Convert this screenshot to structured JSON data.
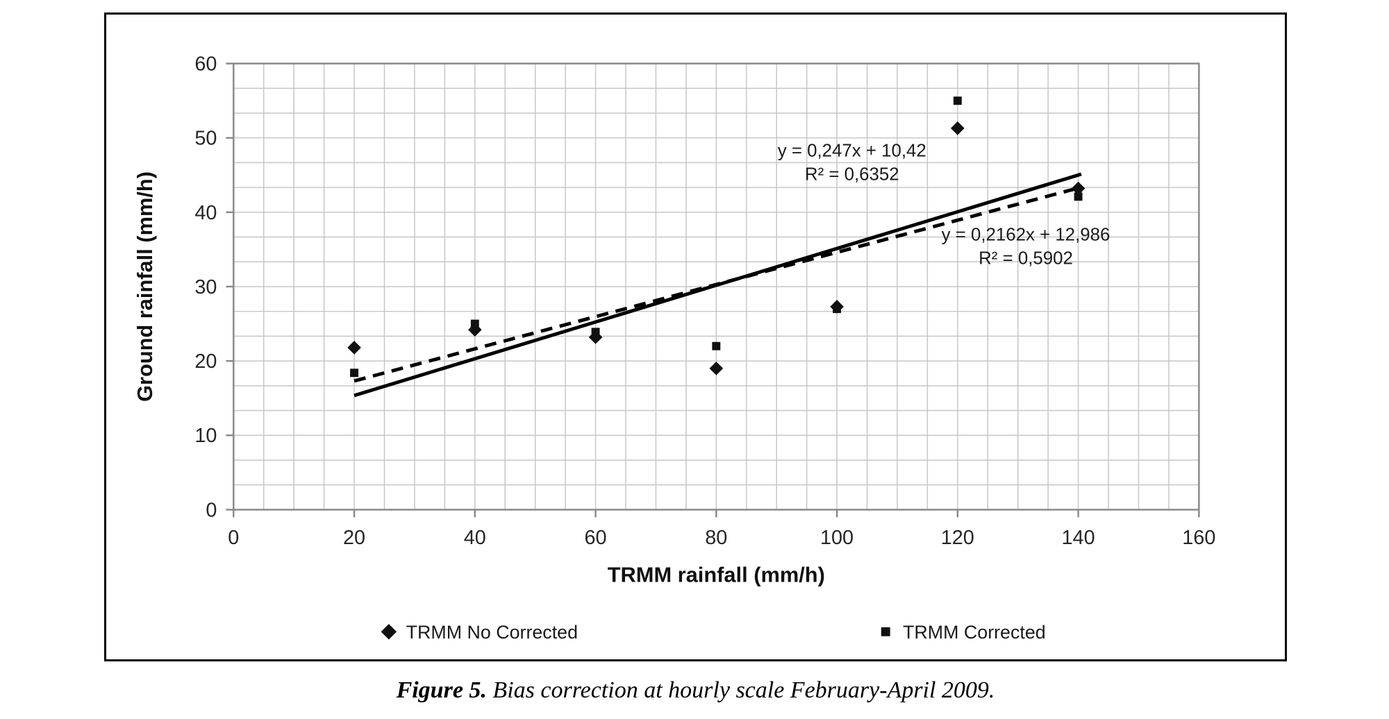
{
  "caption": {
    "label": "Figure 5.",
    "text": "Bias correction at hourly scale February-April 2009."
  },
  "chart_data": {
    "type": "scatter",
    "title": "",
    "xlabel": "TRMM rainfall (mm/h)",
    "ylabel": "Ground rainfall (mm/h)",
    "xlim": [
      0,
      160
    ],
    "ylim": [
      0,
      60
    ],
    "x_major_ticks": [
      0,
      20,
      40,
      60,
      80,
      100,
      120,
      140,
      160
    ],
    "y_major_ticks": [
      0,
      10,
      20,
      30,
      40,
      50,
      60
    ],
    "x_minor_step": 5,
    "y_minor_step": 3.3333,
    "grid": true,
    "legend_position": "bottom",
    "colors": {
      "marker": "#111111",
      "gridline": "#c6c6c6",
      "plot_border": "#898989",
      "trendline": "#000000"
    },
    "series": [
      {
        "name": "TRMM No Corrected",
        "marker": "diamond",
        "points": [
          [
            20,
            21.8
          ],
          [
            40,
            24.2
          ],
          [
            60,
            23.2
          ],
          [
            80,
            19.0
          ],
          [
            100,
            27.3
          ],
          [
            120,
            51.3
          ],
          [
            140,
            43.2
          ]
        ]
      },
      {
        "name": "TRMM Corrected",
        "marker": "square",
        "points": [
          [
            20,
            18.4
          ],
          [
            40,
            25.0
          ],
          [
            60,
            23.9
          ],
          [
            80,
            22.0
          ],
          [
            100,
            27.0
          ],
          [
            120,
            55.0
          ],
          [
            140,
            42.1
          ]
        ]
      }
    ],
    "trendlines": [
      {
        "style": "solid",
        "equation": "y = 0,247x + 10,42",
        "r2": "R² = 0,6352",
        "slope": 0.247,
        "intercept": 10.42,
        "x_start": 20,
        "x_end": 140.5,
        "label_x": 102.5,
        "label_y": 47.5
      },
      {
        "style": "dashed",
        "equation": "y = 0,2162x + 12,986",
        "r2": "R² = 0,5902",
        "slope": 0.2162,
        "intercept": 12.986,
        "x_start": 20,
        "x_end": 140.5,
        "label_x": 131.3,
        "label_y": 36.2
      }
    ]
  }
}
